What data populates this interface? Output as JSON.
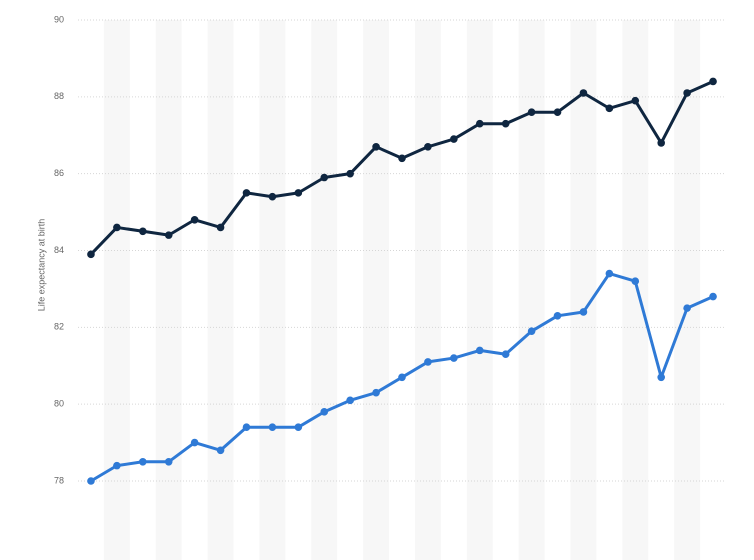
{
  "chart_data": {
    "type": "line",
    "y_label": "Life expectancy at birth",
    "categories": [
      null,
      null,
      null,
      null,
      null,
      null,
      null,
      null,
      null,
      null,
      null,
      null,
      null,
      null,
      null,
      null,
      null,
      null,
      null,
      null,
      null,
      null,
      null,
      null,
      null
    ],
    "series": [
      {
        "color": "#0f2640",
        "values": [
          83.9,
          84.6,
          84.5,
          84.4,
          84.8,
          84.6,
          85.5,
          85.4,
          85.5,
          85.9,
          86.0,
          86.7,
          86.4,
          86.7,
          86.9,
          87.3,
          87.3,
          87.6,
          87.6,
          88.1,
          87.7,
          87.9,
          86.8,
          88.1,
          88.4
        ]
      },
      {
        "color": "#2f7ad6",
        "values": [
          78.0,
          78.4,
          78.5,
          78.5,
          79.0,
          78.8,
          79.4,
          79.4,
          79.4,
          79.8,
          80.1,
          80.3,
          80.7,
          81.1,
          81.2,
          81.4,
          81.3,
          81.9,
          82.3,
          82.4,
          83.4,
          83.2,
          80.7,
          82.5,
          82.8
        ]
      }
    ],
    "ylim": [
      78,
      90
    ],
    "yticks": [
      78,
      80,
      82,
      84,
      86,
      88,
      90
    ],
    "grid": true,
    "band_shading": true
  }
}
